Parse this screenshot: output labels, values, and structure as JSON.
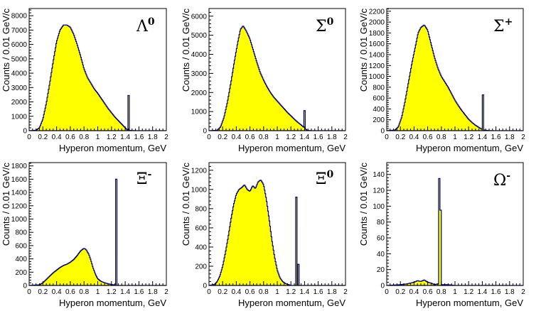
{
  "figure": {
    "colors": {
      "fill": "#ffff00",
      "line": "#00007a",
      "axis": "#000000"
    }
  },
  "chart_data": [
    {
      "type": "histogram",
      "particle": "Λ",
      "superscript": "0",
      "xlabel": "Hyperon momentum, GeV",
      "ylabel": "Counts / 0.01 GeV/c",
      "xlim": [
        0,
        2
      ],
      "ylim": [
        0,
        8500
      ],
      "xticks": [
        "0",
        "0.2",
        "0.4",
        "0.6",
        "0.8",
        "1",
        "1.2",
        "1.4",
        "1.6",
        "1.8",
        "2"
      ],
      "yticks": [
        0,
        1000,
        2000,
        3000,
        4000,
        5000,
        6000,
        7000,
        8000
      ],
      "yticklabels": [
        "0",
        "1000",
        "2000",
        "3000",
        "4000",
        "5000",
        "6000",
        "7000",
        "8000"
      ],
      "curve": [
        [
          0,
          0
        ],
        [
          0.1,
          30
        ],
        [
          0.15,
          200
        ],
        [
          0.2,
          800
        ],
        [
          0.25,
          1900
        ],
        [
          0.3,
          3300
        ],
        [
          0.35,
          4800
        ],
        [
          0.4,
          6200
        ],
        [
          0.45,
          7000
        ],
        [
          0.5,
          7350
        ],
        [
          0.55,
          7350
        ],
        [
          0.6,
          7200
        ],
        [
          0.65,
          6700
        ],
        [
          0.7,
          6000
        ],
        [
          0.75,
          5200
        ],
        [
          0.8,
          4300
        ],
        [
          0.85,
          3700
        ],
        [
          0.9,
          3300
        ],
        [
          0.95,
          2900
        ],
        [
          1.0,
          2600
        ],
        [
          1.05,
          2250
        ],
        [
          1.1,
          1900
        ],
        [
          1.15,
          1550
        ],
        [
          1.2,
          1250
        ],
        [
          1.25,
          950
        ],
        [
          1.3,
          700
        ],
        [
          1.35,
          450
        ],
        [
          1.38,
          300
        ],
        [
          1.41,
          150
        ],
        [
          1.43,
          60
        ],
        [
          1.46,
          20
        ],
        [
          1.5,
          10
        ],
        [
          1.55,
          5
        ],
        [
          1.6,
          0
        ],
        [
          2.0,
          0
        ]
      ],
      "peaks": [
        {
          "x": 1.45,
          "height": 2450,
          "width": 0.02
        }
      ]
    },
    {
      "type": "histogram",
      "particle": "Σ",
      "superscript": "0",
      "xlabel": "Hyperon momentum, GeV",
      "ylabel": "Counts / 0.01 GeV/c",
      "xlim": [
        0,
        2
      ],
      "ylim": [
        0,
        6400
      ],
      "xticks": [
        "0",
        "0.2",
        "0.4",
        "0.6",
        "0.8",
        "1",
        "1.2",
        "1.4",
        "1.6",
        "1.8",
        "2"
      ],
      "yticks": [
        0,
        1000,
        2000,
        3000,
        4000,
        5000,
        6000
      ],
      "yticklabels": [
        "0",
        "1000",
        "2000",
        "3000",
        "4000",
        "5000",
        "6000"
      ],
      "curve": [
        [
          0,
          0
        ],
        [
          0.12,
          20
        ],
        [
          0.17,
          200
        ],
        [
          0.22,
          700
        ],
        [
          0.27,
          1500
        ],
        [
          0.32,
          2500
        ],
        [
          0.37,
          3600
        ],
        [
          0.42,
          4600
        ],
        [
          0.46,
          5300
        ],
        [
          0.5,
          5500
        ],
        [
          0.55,
          5200
        ],
        [
          0.6,
          4800
        ],
        [
          0.65,
          4200
        ],
        [
          0.7,
          3600
        ],
        [
          0.75,
          3050
        ],
        [
          0.8,
          2650
        ],
        [
          0.85,
          2300
        ],
        [
          0.9,
          2000
        ],
        [
          0.95,
          1750
        ],
        [
          1.0,
          1550
        ],
        [
          1.05,
          1350
        ],
        [
          1.1,
          1150
        ],
        [
          1.15,
          950
        ],
        [
          1.2,
          780
        ],
        [
          1.25,
          600
        ],
        [
          1.3,
          440
        ],
        [
          1.35,
          300
        ],
        [
          1.38,
          200
        ],
        [
          1.41,
          100
        ],
        [
          1.43,
          40
        ],
        [
          1.46,
          10
        ],
        [
          1.5,
          0
        ],
        [
          2.0,
          0
        ]
      ],
      "peaks": [
        {
          "x": 1.4,
          "height": 1050,
          "width": 0.02
        }
      ]
    },
    {
      "type": "histogram",
      "particle": "Σ",
      "superscript": "+",
      "xlabel": "Hyperon momentum, GeV",
      "ylabel": "Counts / 0.01 GeV/c",
      "xlim": [
        0,
        2
      ],
      "ylim": [
        0,
        2250
      ],
      "xticks": [
        "0",
        "0.2",
        "0.4",
        "0.6",
        "0.8",
        "1",
        "1.2",
        "1.4",
        "1.6",
        "1.8",
        "2"
      ],
      "yticks": [
        0,
        200,
        400,
        600,
        800,
        1000,
        1200,
        1400,
        1600,
        1800,
        2000,
        2200
      ],
      "yticklabels": [
        "0",
        "200",
        "400",
        "600",
        "800",
        "1000",
        "1200",
        "1400",
        "1600",
        "1800",
        "2000",
        "2200"
      ],
      "curve": [
        [
          0,
          0
        ],
        [
          0.12,
          10
        ],
        [
          0.17,
          70
        ],
        [
          0.22,
          250
        ],
        [
          0.27,
          550
        ],
        [
          0.32,
          900
        ],
        [
          0.37,
          1250
        ],
        [
          0.42,
          1550
        ],
        [
          0.46,
          1800
        ],
        [
          0.5,
          1900
        ],
        [
          0.55,
          1950
        ],
        [
          0.6,
          1850
        ],
        [
          0.65,
          1600
        ],
        [
          0.7,
          1350
        ],
        [
          0.75,
          1150
        ],
        [
          0.8,
          1000
        ],
        [
          0.85,
          900
        ],
        [
          0.9,
          800
        ],
        [
          0.95,
          680
        ],
        [
          1.0,
          560
        ],
        [
          1.05,
          460
        ],
        [
          1.1,
          370
        ],
        [
          1.15,
          290
        ],
        [
          1.2,
          210
        ],
        [
          1.25,
          150
        ],
        [
          1.3,
          100
        ],
        [
          1.35,
          60
        ],
        [
          1.38,
          35
        ],
        [
          1.42,
          15
        ],
        [
          1.46,
          5
        ],
        [
          1.55,
          0
        ],
        [
          2.0,
          0
        ]
      ],
      "peaks": [
        {
          "x": 1.41,
          "height": 660,
          "width": 0.02
        }
      ]
    },
    {
      "type": "histogram",
      "particle": "Ξ",
      "superscript": "-",
      "xlabel": "Hyperon momentum, GeV",
      "ylabel": "Counts / 0.01 GeV/c",
      "xlim": [
        0,
        2
      ],
      "ylim": [
        0,
        1850
      ],
      "xticks": [
        "0",
        "0.2",
        "0.4",
        "0.6",
        "0.8",
        "1",
        "1.2",
        "1.4",
        "1.6",
        "1.8",
        "2"
      ],
      "yticks": [
        0,
        200,
        400,
        600,
        800,
        1000,
        1200,
        1400,
        1600,
        1800
      ],
      "yticklabels": [
        "0",
        "200",
        "400",
        "600",
        "800",
        "1000",
        "1200",
        "1400",
        "1600",
        "1800"
      ],
      "curve": [
        [
          0,
          0
        ],
        [
          0.15,
          10
        ],
        [
          0.2,
          40
        ],
        [
          0.25,
          90
        ],
        [
          0.3,
          140
        ],
        [
          0.35,
          190
        ],
        [
          0.4,
          230
        ],
        [
          0.45,
          270
        ],
        [
          0.5,
          300
        ],
        [
          0.55,
          320
        ],
        [
          0.6,
          350
        ],
        [
          0.65,
          390
        ],
        [
          0.7,
          450
        ],
        [
          0.75,
          520
        ],
        [
          0.8,
          560
        ],
        [
          0.83,
          540
        ],
        [
          0.87,
          470
        ],
        [
          0.9,
          380
        ],
        [
          0.93,
          270
        ],
        [
          0.97,
          160
        ],
        [
          1.0,
          100
        ],
        [
          1.05,
          60
        ],
        [
          1.1,
          40
        ],
        [
          1.15,
          25
        ],
        [
          1.2,
          15
        ],
        [
          1.26,
          5
        ],
        [
          1.3,
          0
        ],
        [
          2.0,
          0
        ]
      ],
      "peaks": [
        {
          "x": 1.275,
          "height": 1600,
          "width": 0.02
        }
      ]
    },
    {
      "type": "histogram",
      "particle": "Ξ",
      "superscript": "0",
      "xlabel": "Hyperon momentum, GeV",
      "ylabel": "Counts / 0.01 GeV/c",
      "xlim": [
        0,
        2
      ],
      "ylim": [
        0,
        1280
      ],
      "xticks": [
        "0",
        "0.2",
        "0.4",
        "0.6",
        "0.8",
        "1",
        "1.2",
        "1.4",
        "1.6",
        "1.8",
        "2"
      ],
      "yticks": [
        0,
        200,
        400,
        600,
        800,
        1000,
        1200
      ],
      "yticklabels": [
        "0",
        "200",
        "400",
        "600",
        "800",
        "1000",
        "1200"
      ],
      "curve": [
        [
          0,
          0
        ],
        [
          0.08,
          10
        ],
        [
          0.12,
          40
        ],
        [
          0.16,
          100
        ],
        [
          0.2,
          200
        ],
        [
          0.24,
          340
        ],
        [
          0.28,
          500
        ],
        [
          0.32,
          680
        ],
        [
          0.36,
          840
        ],
        [
          0.4,
          950
        ],
        [
          0.44,
          1000
        ],
        [
          0.48,
          1020
        ],
        [
          0.52,
          1050
        ],
        [
          0.56,
          1000
        ],
        [
          0.6,
          980
        ],
        [
          0.64,
          1040
        ],
        [
          0.68,
          1010
        ],
        [
          0.72,
          1080
        ],
        [
          0.76,
          1100
        ],
        [
          0.8,
          1050
        ],
        [
          0.84,
          900
        ],
        [
          0.88,
          700
        ],
        [
          0.92,
          480
        ],
        [
          0.96,
          300
        ],
        [
          1.0,
          160
        ],
        [
          1.04,
          80
        ],
        [
          1.08,
          40
        ],
        [
          1.12,
          20
        ],
        [
          1.16,
          10
        ],
        [
          1.2,
          0
        ],
        [
          2.0,
          0
        ]
      ],
      "peaks": [
        {
          "x": 1.285,
          "height": 920,
          "width": 0.02
        },
        {
          "x": 1.31,
          "height": 220,
          "width": 0.02
        }
      ]
    },
    {
      "type": "histogram",
      "particle": "Ω",
      "superscript": "-",
      "xlabel": "Hyperon momentum, GeV",
      "ylabel": "Counts / 0.01 GeV/c",
      "xlim": [
        0,
        2
      ],
      "ylim": [
        0,
        155
      ],
      "xticks": [
        "0",
        "0.2",
        "0.4",
        "0.6",
        "0.8",
        "1",
        "1.2",
        "1.4",
        "1.6",
        "1.8",
        "2"
      ],
      "yticks": [
        0,
        20,
        40,
        60,
        80,
        100,
        120,
        140
      ],
      "yticklabels": [
        "0",
        "20",
        "40",
        "60",
        "80",
        "100",
        "120",
        "140"
      ],
      "curve": [
        [
          0,
          0
        ],
        [
          0.2,
          1
        ],
        [
          0.3,
          2
        ],
        [
          0.4,
          4
        ],
        [
          0.45,
          6
        ],
        [
          0.5,
          5
        ],
        [
          0.55,
          7
        ],
        [
          0.6,
          4
        ],
        [
          0.65,
          3
        ],
        [
          0.7,
          1
        ],
        [
          0.75,
          2
        ],
        [
          0.8,
          1
        ],
        [
          0.9,
          1
        ],
        [
          1.0,
          0
        ],
        [
          2.0,
          0
        ]
      ],
      "peaks": [
        {
          "x": 0.775,
          "height": 135,
          "width": 0.02
        },
        {
          "x": 0.795,
          "height": 95,
          "width": 0.02
        }
      ]
    }
  ]
}
